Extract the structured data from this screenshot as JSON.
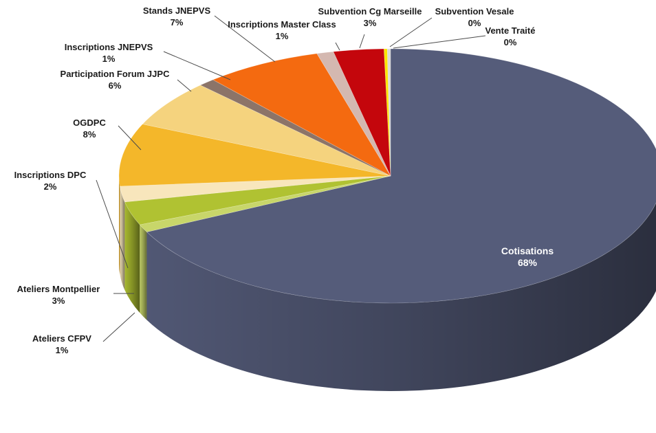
{
  "chart_data": {
    "type": "pie",
    "style": "3d",
    "title": "",
    "slices": [
      {
        "name": "Cotisations",
        "value": 68,
        "label": "68%",
        "color": "#555c7a"
      },
      {
        "name": "Ateliers CFPV",
        "value": 1,
        "label": "1%",
        "color": "#c8d66a"
      },
      {
        "name": "Ateliers Montpellier",
        "value": 3,
        "label": "3%",
        "color": "#b0c232"
      },
      {
        "name": "Inscriptions DPC",
        "value": 2,
        "label": "2%",
        "color": "#f8e6bc"
      },
      {
        "name": "OGDPC",
        "value": 8,
        "label": "8%",
        "color": "#f4b72a"
      },
      {
        "name": "Participation Forum JJPC",
        "value": 6,
        "label": "6%",
        "color": "#f5d37e"
      },
      {
        "name": "Inscriptions JNEPVS",
        "value": 1,
        "label": "1%",
        "color": "#8c7468"
      },
      {
        "name": "Stands JNEPVS",
        "value": 7,
        "label": "7%",
        "color": "#f46a10"
      },
      {
        "name": "Inscriptions Master Class",
        "value": 1,
        "label": "1%",
        "color": "#d4b8b0"
      },
      {
        "name": "Subvention Cg Marseille",
        "value": 3,
        "label": "3%",
        "color": "#c4060c"
      },
      {
        "name": "Subvention Vesale",
        "value": 0,
        "label": "0%",
        "color": "#fbe600"
      },
      {
        "name": "Vente Traité",
        "value": 0,
        "label": "0%",
        "color": "#d9d9d9"
      }
    ]
  }
}
